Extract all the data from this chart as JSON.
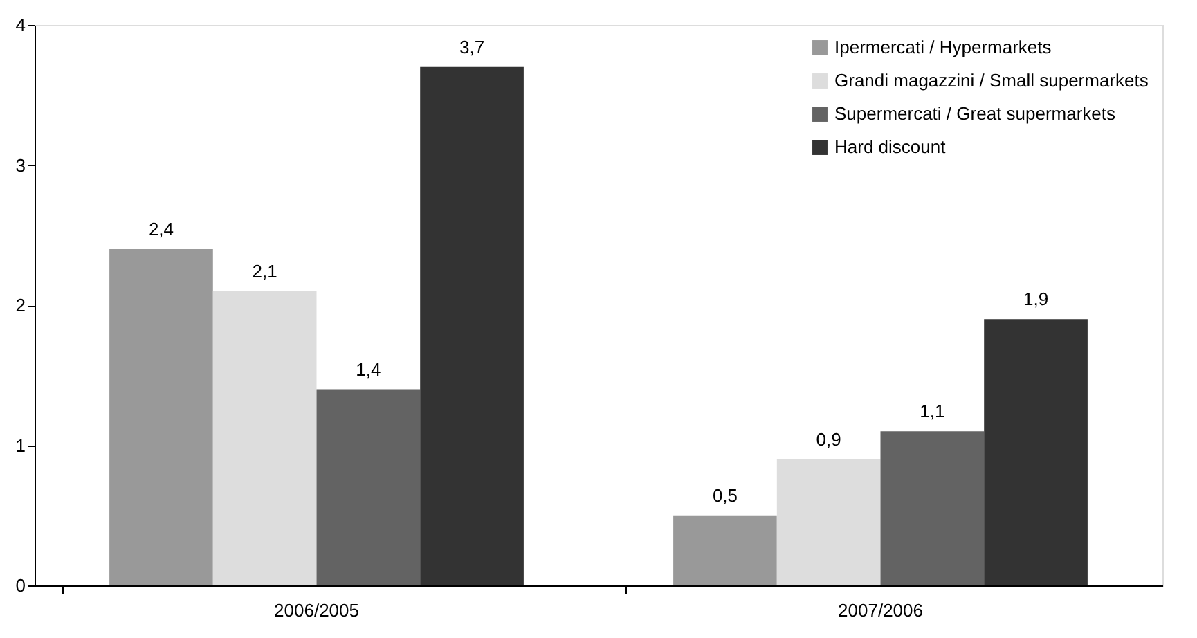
{
  "chart_data": {
    "type": "bar",
    "categories": [
      "2006/2005",
      "2007/2006"
    ],
    "series": [
      {
        "name": "Ipermercati / Hypermarkets",
        "color": "#999999",
        "values": [
          2.4,
          0.5
        ],
        "value_labels": [
          "2,4",
          "0,5"
        ]
      },
      {
        "name": "Grandi magazzini / Small supermarkets",
        "color": "#dddddd",
        "values": [
          2.1,
          0.9
        ],
        "value_labels": [
          "2,1",
          "0,9"
        ]
      },
      {
        "name": "Supermercati / Great supermarkets",
        "color": "#636363",
        "values": [
          1.4,
          1.1
        ],
        "value_labels": [
          "1,4",
          "1,1"
        ]
      },
      {
        "name": "Hard discount",
        "color": "#333333",
        "values": [
          3.7,
          1.9
        ],
        "value_labels": [
          "3,7",
          "1,9"
        ]
      }
    ],
    "ylim": [
      0,
      4
    ],
    "yticks": [
      0,
      1,
      2,
      3,
      4
    ],
    "grid": false,
    "legend": "top right"
  }
}
